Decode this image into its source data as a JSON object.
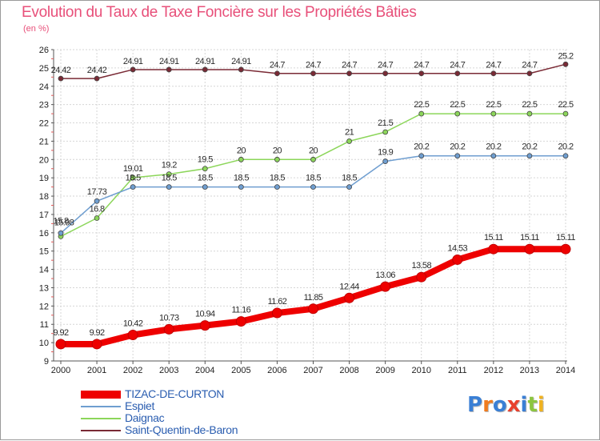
{
  "title": "Evolution du Taux de Taxe Foncière sur les Propriétés Bâties",
  "unit": "(en %)",
  "logo": {
    "text": "Proxiti",
    "letter_colors": [
      "#3a7fd5",
      "#f07c1f",
      "#3a7fd5",
      "#e8412d",
      "#3a7fd5",
      "#8cc63f",
      "#f0b21f"
    ]
  },
  "chart_data": {
    "type": "line",
    "title": "Evolution du Taux de Taxe Foncière sur les Propriétés Bâties",
    "ylabel": "(en %)",
    "xlabel": "",
    "x": [
      "2000",
      "2001",
      "2002",
      "2003",
      "2004",
      "2005",
      "2006",
      "2007",
      "2008",
      "2009",
      "2010",
      "2011",
      "2012",
      "2013",
      "2014"
    ],
    "ylim": [
      9,
      26
    ],
    "yticks": [
      "9",
      "10",
      "11",
      "12",
      "13",
      "14",
      "15",
      "16",
      "17",
      "18",
      "19",
      "20",
      "21",
      "22",
      "23",
      "24",
      "25",
      "26"
    ],
    "grid": true,
    "legend_position": "bottom-left",
    "series": [
      {
        "name": "Saint-Quentin-de-Baron",
        "color": "#7a2a35",
        "values": [
          24.42,
          24.42,
          24.91,
          24.91,
          24.91,
          24.91,
          24.7,
          24.7,
          24.7,
          24.7,
          24.7,
          24.7,
          24.7,
          24.7,
          25.2
        ],
        "labels": [
          "24.42",
          "24.42",
          "24.91",
          "24.91",
          "24.91",
          "24.91",
          "24.7",
          "24.7",
          "24.7",
          "24.7",
          "24.7",
          "24.7",
          "24.7",
          "24.7",
          "25.2"
        ]
      },
      {
        "name": "Daignac",
        "color": "#8cd65a",
        "values": [
          15.8,
          16.8,
          19.01,
          19.2,
          19.5,
          20,
          20,
          20,
          21,
          21.5,
          22.5,
          22.5,
          22.5,
          22.5,
          22.5
        ],
        "labels": [
          "15.8",
          "16.8",
          "19.01",
          "19.2",
          "19.5",
          "20",
          "20",
          "20",
          "21",
          "21.5",
          "22.5",
          "22.5",
          "22.5",
          "22.5",
          "22.5"
        ]
      },
      {
        "name": "Espiet",
        "color": "#6f9ed0",
        "values": [
          15.98,
          17.73,
          18.5,
          18.5,
          18.5,
          18.5,
          18.5,
          18.5,
          18.5,
          19.9,
          20.2,
          20.2,
          20.2,
          20.2,
          20.2
        ],
        "labels": [
          "15.98",
          "17.73",
          "18.5",
          "18.5",
          "18.5",
          "18.5",
          "18.5",
          "18.5",
          "18.5",
          "19.9",
          "20.2",
          "20.2",
          "20.2",
          "20.2",
          "20.2"
        ]
      },
      {
        "name": "TIZAC-DE-CURTON",
        "color": "#ee0000",
        "values": [
          9.92,
          9.92,
          10.42,
          10.73,
          10.94,
          11.16,
          11.62,
          11.85,
          12.44,
          13.06,
          13.58,
          14.53,
          15.11,
          15.11,
          15.11
        ],
        "labels": [
          "9.92",
          "9.92",
          "10.42",
          "10.73",
          "10.94",
          "11.16",
          "11.62",
          "11.85",
          "12.44",
          "13.06",
          "13.58",
          "14.53",
          "15.11",
          "15.11",
          "15.11"
        ]
      }
    ],
    "legend": [
      "TIZAC-DE-CURTON",
      "Espiet",
      "Daignac",
      "Saint-Quentin-de-Baron"
    ]
  }
}
